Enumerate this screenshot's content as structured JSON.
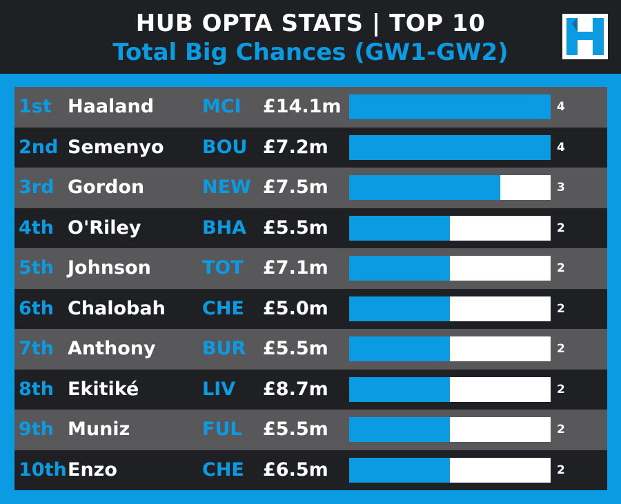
{
  "header": {
    "title": "HUB OPTA STATS | TOP 10",
    "subtitle": "Total Big Chances (GW1-GW2)"
  },
  "logo": {
    "icon": "hub-logo-icon",
    "letter": "H"
  },
  "colors": {
    "accent": "#0b9be3",
    "dark": "#1f2023",
    "light_row": "#58585a",
    "track": "#ffffff"
  },
  "chart_data": {
    "type": "bar",
    "orientation": "horizontal",
    "xlim": [
      0,
      4
    ],
    "rows": [
      {
        "rank": "1st",
        "name": "Haaland",
        "team": "MCI",
        "price": "£14.1m",
        "value": 4
      },
      {
        "rank": "2nd",
        "name": "Semenyo",
        "team": "BOU",
        "price": "£7.2m",
        "value": 4
      },
      {
        "rank": "3rd",
        "name": "Gordon",
        "team": "NEW",
        "price": "£7.5m",
        "value": 3
      },
      {
        "rank": "4th",
        "name": "O'Riley",
        "team": "BHA",
        "price": "£5.5m",
        "value": 2
      },
      {
        "rank": "5th",
        "name": "Johnson",
        "team": "TOT",
        "price": "£7.1m",
        "value": 2
      },
      {
        "rank": "6th",
        "name": "Chalobah",
        "team": "CHE",
        "price": "£5.0m",
        "value": 2
      },
      {
        "rank": "7th",
        "name": "Anthony",
        "team": "BUR",
        "price": "£5.5m",
        "value": 2
      },
      {
        "rank": "8th",
        "name": "Ekitiké",
        "team": "LIV",
        "price": "£8.7m",
        "value": 2
      },
      {
        "rank": "9th",
        "name": "Muniz",
        "team": "FUL",
        "price": "£5.5m",
        "value": 2
      },
      {
        "rank": "10th",
        "name": "Enzo",
        "team": "CHE",
        "price": "£6.5m",
        "value": 2
      }
    ]
  }
}
